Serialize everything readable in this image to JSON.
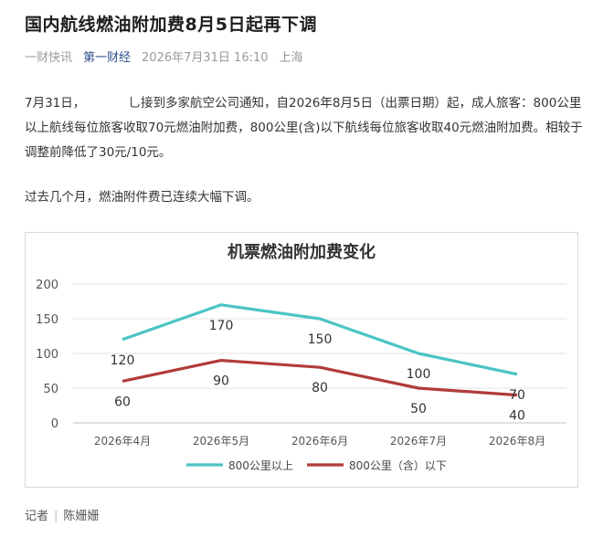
{
  "article": {
    "title": "国内航线燃油附加费8月5日起再下调",
    "meta": {
      "author": "一财快讯",
      "source": "第一财经",
      "datetime": "2026年7月31日 16:10",
      "location": "上海"
    },
    "paragraph1": "7月31日，　　　　乚接到多家航空公司通知，自2026年8月5日（出票日期）起，成人旅客：800公里以上航线每位旅客收取70元燃油附加费，800公里(含)以下航线每位旅客收取40元燃油附加费。相较于调整前降低了30元/10元。",
    "paragraph2": "过去几个月，燃油附件费已连续大幅下调。",
    "byline_label": "记者",
    "byline_name": "陈姗姗"
  },
  "chart_data": {
    "type": "line",
    "title": "机票燃油附加费变化",
    "categories": [
      "2026年4月",
      "2026年5月",
      "2026年6月",
      "2026年7月",
      "2026年8月"
    ],
    "ylim": [
      0,
      200
    ],
    "yticks": [
      0,
      50,
      100,
      150,
      200
    ],
    "grid": true,
    "legend_position": "bottom",
    "series": [
      {
        "name": "800公里以上",
        "values": [
          120,
          170,
          150,
          100,
          70
        ],
        "color": "#4bc4c4"
      },
      {
        "name": "800公里（含）以下",
        "values": [
          60,
          90,
          80,
          50,
          40
        ],
        "color": "#b23b3b"
      }
    ]
  }
}
